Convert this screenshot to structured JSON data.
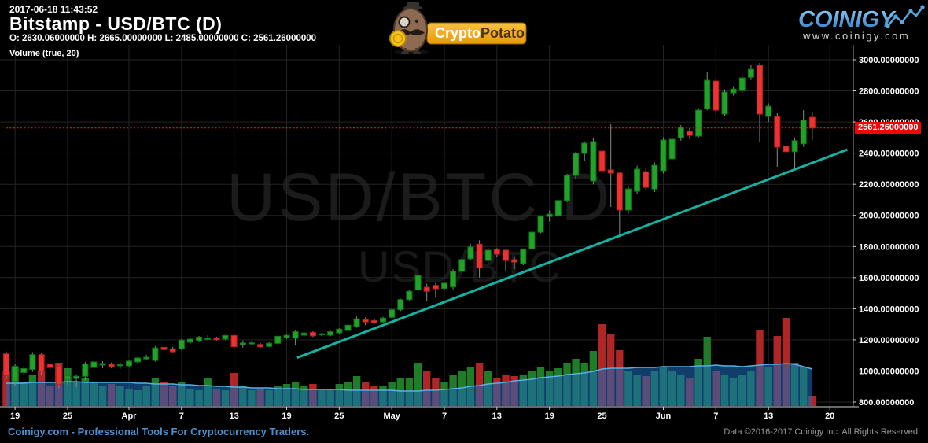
{
  "header": {
    "timestamp": "2017-06-18 11:43:52",
    "title": "Bitstamp - USD/BTC (D)",
    "ohlc": "O: 2630.06000000 H: 2665.00000000 L: 2485.00000000 C: 2561.26000000",
    "volume_label": "Volume (true, 20)"
  },
  "logos": {
    "cryptopotato": {
      "text_crypto": "Crypto",
      "text_potato": "Potato"
    },
    "coinigy": {
      "text": "COINIGY",
      "url": "www.coinigy.com"
    }
  },
  "watermark": {
    "line1": "USD/BTC D",
    "line2": "USD/BTC"
  },
  "price_label": "2561.26000000",
  "footer": {
    "left": "Coinigy.com - Professional Tools For Cryptocurrency Traders.",
    "right": "Data ©2016-2017 Coinigy Inc. All Rights Reserved."
  },
  "colors": {
    "up": "#23a22a",
    "up_stroke": "#0f7a18",
    "down": "#ee3232",
    "down_stroke": "#b81f1f",
    "wick": "#8a8a8a",
    "vol_up": "#1f7d27",
    "vol_down": "#b02525",
    "vol_ma_fill": "rgba(30,105,185,0.58)",
    "vol_ma_edge": "#55b0ea",
    "grid": "#242424",
    "axis": "#9a9a9a",
    "axis_bottom": "#cfcfcf",
    "trend": "#12b3a2",
    "last_price_line": "#ff1a1a",
    "label_text": "#ffffff",
    "accent_blue": "#4a90d2"
  },
  "chart_data": {
    "type": "candlestick+volume",
    "title": "Bitstamp - USD/BTC (D)",
    "exchange": "Bitstamp",
    "pair": "USD/BTC",
    "interval": "D",
    "last_price": 2561.26,
    "y_axis_range": [
      800,
      3000
    ],
    "grid": true,
    "y_ticks": [
      {
        "label": "3000.00000000",
        "value": 3000
      },
      {
        "label": "2800.00000000",
        "value": 2800
      },
      {
        "label": "2600.00000000",
        "value": 2600
      },
      {
        "label": "2400.00000000",
        "value": 2400
      },
      {
        "label": "2200.00000000",
        "value": 2200
      },
      {
        "label": "2000.00000000",
        "value": 2000
      },
      {
        "label": "1800.00000000",
        "value": 1800
      },
      {
        "label": "1600.00000000",
        "value": 1600
      },
      {
        "label": "1400.00000000",
        "value": 1400
      },
      {
        "label": "1200.00000000",
        "value": 1200
      },
      {
        "label": "1000.00000000",
        "value": 1000
      },
      {
        "label": "800.00000000",
        "value": 800
      }
    ],
    "x_ticks": [
      {
        "label": "19",
        "index": 1,
        "month": false
      },
      {
        "label": "25",
        "index": 7,
        "month": false
      },
      {
        "label": "Apr",
        "index": 14,
        "month": true
      },
      {
        "label": "7",
        "index": 20,
        "month": false
      },
      {
        "label": "13",
        "index": 26,
        "month": false
      },
      {
        "label": "19",
        "index": 32,
        "month": false
      },
      {
        "label": "25",
        "index": 38,
        "month": false
      },
      {
        "label": "May",
        "index": 44,
        "month": true
      },
      {
        "label": "7",
        "index": 50,
        "month": false
      },
      {
        "label": "13",
        "index": 56,
        "month": false
      },
      {
        "label": "19",
        "index": 62,
        "month": false
      },
      {
        "label": "25",
        "index": 68,
        "month": false
      },
      {
        "label": "Jun",
        "index": 75,
        "month": true
      },
      {
        "label": "7",
        "index": 81,
        "month": false
      },
      {
        "label": "13",
        "index": 87,
        "month": false
      },
      {
        "label": "20",
        "index": 94,
        "month": false
      }
    ],
    "trendline": {
      "from_index": 33.2,
      "from_price": 1085,
      "to_index": 96,
      "to_price": 2423
    },
    "candles_columns": [
      "date",
      "open",
      "high",
      "low",
      "close",
      "volume_rel",
      "volume_ma20_rel"
    ],
    "volume_scale_note": "relative height units, max pane = 112",
    "candles": [
      [
        "Mar 18",
        1110,
        1125,
        950,
        970,
        45,
        29
      ],
      [
        "Mar 19",
        935,
        1045,
        905,
        1030,
        50,
        29
      ],
      [
        "Mar 20",
        990,
        1030,
        975,
        1015,
        30,
        29
      ],
      [
        "Mar 21",
        1010,
        1120,
        995,
        1105,
        40,
        30
      ],
      [
        "Mar 22",
        1105,
        1118,
        972,
        998,
        45,
        30
      ],
      [
        "Mar 23",
        1042,
        1056,
        1008,
        1022,
        25,
        30
      ],
      [
        "Mar 24",
        1032,
        1043,
        890,
        912,
        55,
        30
      ],
      [
        "Mar 25",
        945,
        975,
        910,
        968,
        48,
        31
      ],
      [
        "Mar 26",
        952,
        978,
        896,
        966,
        30,
        31
      ],
      [
        "Mar 27",
        966,
        1058,
        940,
        1046,
        35,
        30
      ],
      [
        "Mar 28",
        1022,
        1068,
        1010,
        1058,
        30,
        30
      ],
      [
        "Mar 29",
        1038,
        1063,
        1017,
        1048,
        25,
        30
      ],
      [
        "Mar 30",
        1043,
        1055,
        1018,
        1028,
        28,
        30
      ],
      [
        "Mar 31",
        1035,
        1056,
        1014,
        1040,
        25,
        30
      ],
      [
        "Apr 1",
        1033,
        1070,
        1025,
        1063,
        22,
        30
      ],
      [
        "Apr 2",
        1058,
        1090,
        1048,
        1083,
        20,
        29
      ],
      [
        "Apr 3",
        1078,
        1104,
        1068,
        1088,
        25,
        29
      ],
      [
        "Apr 4",
        1068,
        1160,
        1060,
        1148,
        35,
        28
      ],
      [
        "Apr 5",
        1152,
        1170,
        1125,
        1138,
        30,
        28
      ],
      [
        "Apr 6",
        1143,
        1155,
        1118,
        1124,
        25,
        28
      ],
      [
        "Apr 7",
        1143,
        1205,
        1135,
        1198,
        30,
        27
      ],
      [
        "Apr 8",
        1185,
        1210,
        1175,
        1204,
        22,
        27
      ],
      [
        "Apr 9",
        1195,
        1225,
        1185,
        1218,
        20,
        26
      ],
      [
        "Apr 10",
        1205,
        1230,
        1190,
        1210,
        35,
        26
      ],
      [
        "Apr 11",
        1210,
        1220,
        1192,
        1200,
        22,
        25
      ],
      [
        "Apr 12",
        1205,
        1232,
        1198,
        1228,
        20,
        25
      ],
      [
        "Apr 13",
        1228,
        1235,
        1135,
        1156,
        42,
        24
      ],
      [
        "Apr 14",
        1168,
        1196,
        1150,
        1180,
        25,
        24
      ],
      [
        "Apr 15",
        1176,
        1188,
        1165,
        1181,
        20,
        23
      ],
      [
        "Apr 16",
        1170,
        1180,
        1148,
        1155,
        22,
        23
      ],
      [
        "Apr 17",
        1158,
        1185,
        1152,
        1178,
        20,
        23
      ],
      [
        "Apr 18",
        1178,
        1228,
        1172,
        1223,
        25,
        22
      ],
      [
        "Apr 19",
        1214,
        1235,
        1205,
        1229,
        28,
        22
      ],
      [
        "Apr 20",
        1210,
        1263,
        1169,
        1252,
        30,
        22
      ],
      [
        "Apr 21",
        1230,
        1250,
        1222,
        1244,
        25,
        21
      ],
      [
        "Apr 22",
        1248,
        1255,
        1218,
        1225,
        28,
        21
      ],
      [
        "Apr 23",
        1233,
        1245,
        1225,
        1239,
        20,
        21
      ],
      [
        "Apr 24",
        1230,
        1258,
        1224,
        1252,
        22,
        21
      ],
      [
        "Apr 25",
        1245,
        1275,
        1238,
        1269,
        28,
        21
      ],
      [
        "Apr 26",
        1260,
        1300,
        1252,
        1294,
        30,
        20
      ],
      [
        "Apr 27",
        1285,
        1350,
        1278,
        1335,
        38,
        20
      ],
      [
        "Apr 28",
        1330,
        1345,
        1295,
        1315,
        30,
        20
      ],
      [
        "Apr 29",
        1324,
        1340,
        1302,
        1310,
        25,
        20
      ],
      [
        "Apr 30",
        1315,
        1348,
        1308,
        1340,
        25,
        20
      ],
      [
        "May 1",
        1345,
        1400,
        1338,
        1394,
        30,
        20
      ],
      [
        "May 2",
        1394,
        1465,
        1385,
        1459,
        35,
        19
      ],
      [
        "May 3",
        1459,
        1520,
        1448,
        1512,
        35,
        19
      ],
      [
        "May 4",
        1520,
        1640,
        1500,
        1613,
        55,
        19
      ],
      [
        "May 5",
        1538,
        1560,
        1447,
        1512,
        45,
        20
      ],
      [
        "May 6",
        1550,
        1565,
        1470,
        1528,
        35,
        20
      ],
      [
        "May 7",
        1530,
        1570,
        1520,
        1564,
        30,
        21
      ],
      [
        "May 8",
        1540,
        1655,
        1525,
        1640,
        40,
        22
      ],
      [
        "May 9",
        1640,
        1730,
        1630,
        1716,
        45,
        23
      ],
      [
        "May 10",
        1721,
        1815,
        1710,
        1797,
        50,
        25
      ],
      [
        "May 11",
        1815,
        1840,
        1600,
        1662,
        55,
        26
      ],
      [
        "May 12",
        1710,
        1790,
        1690,
        1776,
        45,
        28
      ],
      [
        "May 13",
        1781,
        1790,
        1730,
        1750,
        35,
        29
      ],
      [
        "May 14",
        1776,
        1786,
        1640,
        1710,
        40,
        30
      ],
      [
        "May 15",
        1715,
        1730,
        1655,
        1700,
        38,
        32
      ],
      [
        "May 16",
        1690,
        1786,
        1680,
        1781,
        40,
        33
      ],
      [
        "May 17",
        1786,
        1900,
        1780,
        1892,
        45,
        34
      ],
      [
        "May 18",
        1892,
        2000,
        1885,
        1993,
        50,
        36
      ],
      [
        "May 19",
        1993,
        2030,
        1960,
        2008,
        45,
        37
      ],
      [
        "May 20",
        1998,
        2100,
        1990,
        2095,
        48,
        38
      ],
      [
        "May 21",
        2095,
        2265,
        2085,
        2257,
        55,
        40
      ],
      [
        "May 22",
        2257,
        2410,
        2230,
        2398,
        60,
        41
      ],
      [
        "May 23",
        2398,
        2475,
        2350,
        2464,
        55,
        42
      ],
      [
        "May 24",
        2221,
        2499,
        2200,
        2474,
        70,
        44
      ],
      [
        "May 25",
        2413,
        2470,
        2221,
        2287,
        104,
        47
      ],
      [
        "May 26",
        2292,
        2590,
        2054,
        2272,
        91,
        48
      ],
      [
        "May 27",
        2272,
        2280,
        1882,
        2034,
        71,
        48
      ],
      [
        "May 28",
        2034,
        2190,
        2010,
        2170,
        45,
        48
      ],
      [
        "May 29",
        2155,
        2320,
        2140,
        2297,
        40,
        49
      ],
      [
        "May 30",
        2281,
        2300,
        2160,
        2180,
        38,
        49
      ],
      [
        "May 31",
        2170,
        2340,
        2150,
        2322,
        45,
        49
      ],
      [
        "Jun 1",
        2287,
        2500,
        2270,
        2484,
        50,
        50
      ],
      [
        "Jun 2",
        2363,
        2510,
        2350,
        2489,
        45,
        50
      ],
      [
        "Jun 3",
        2499,
        2580,
        2480,
        2565,
        40,
        50
      ],
      [
        "Jun 4",
        2539,
        2560,
        2490,
        2514,
        35,
        50
      ],
      [
        "Jun 5",
        2509,
        2690,
        2500,
        2676,
        60,
        51
      ],
      [
        "Jun 6",
        2686,
        2919,
        2676,
        2868,
        88,
        51
      ],
      [
        "Jun 7",
        2863,
        2880,
        2650,
        2676,
        45,
        52
      ],
      [
        "Jun 8",
        2651,
        2810,
        2640,
        2792,
        40,
        51
      ],
      [
        "Jun 9",
        2787,
        2830,
        2770,
        2812,
        35,
        51
      ],
      [
        "Jun 10",
        2802,
        2900,
        2790,
        2883,
        40,
        50
      ],
      [
        "Jun 11",
        2888,
        2970,
        2870,
        2939,
        45,
        51
      ],
      [
        "Jun 12",
        2964,
        2980,
        2474,
        2651,
        96,
        52
      ],
      [
        "Jun 13",
        2636,
        2720,
        2600,
        2701,
        50,
        53
      ],
      [
        "Jun 14",
        2636,
        2660,
        2312,
        2439,
        89,
        53
      ],
      [
        "Jun 15",
        2444,
        2470,
        2120,
        2409,
        112,
        54
      ],
      [
        "Jun 16",
        2409,
        2500,
        2307,
        2480,
        55,
        53
      ],
      [
        "Jun 17",
        2460,
        2676,
        2440,
        2611,
        50,
        50
      ],
      [
        "Jun 18",
        2630.06,
        2665,
        2485,
        2561.26,
        13,
        47
      ]
    ]
  }
}
